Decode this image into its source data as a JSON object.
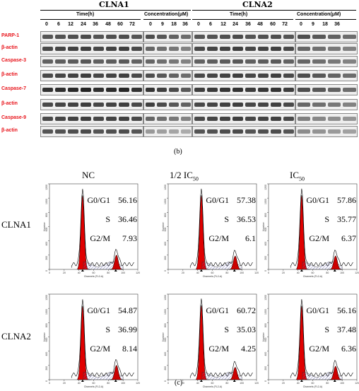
{
  "blot": {
    "groups": [
      {
        "name": "CLNA1",
        "time_header": "Time(h)",
        "conc_header": "Concentration(μM)",
        "time_lanes": [
          "0",
          "6",
          "12",
          "24",
          "36",
          "48",
          "60",
          "72"
        ],
        "conc_lanes": [
          "0",
          "9",
          "18",
          "36"
        ]
      },
      {
        "name": "CLNA2",
        "time_header": "Time(h)",
        "conc_header": "Concentration(μM)",
        "time_lanes": [
          "0",
          "6",
          "12",
          "24",
          "36",
          "48",
          "60",
          "72"
        ],
        "conc_lanes": [
          "0",
          "9",
          "18",
          "36"
        ]
      }
    ],
    "rows": [
      "PARP-1",
      "β-actin",
      "Caspase-3",
      "β-actin",
      "Caspase-7",
      "β-actin",
      "Caspase-9",
      "β-actin"
    ],
    "label_color": "#e8141b",
    "caption": "(b)"
  },
  "flow": {
    "columns": [
      "NC",
      "1/2 IC50",
      "IC50"
    ],
    "rows": [
      "CLNA1",
      "CLNA2"
    ],
    "x_axis_label": "Channels (FL2-A)",
    "y_axis_label": "Number",
    "x_ticks": [
      "0",
      "20",
      "40",
      "60",
      "80",
      "100",
      "120"
    ],
    "y_ticks": [
      "0",
      "200",
      "400",
      "600",
      "800",
      "1000",
      "1200"
    ],
    "stat_labels": [
      "G0/G1",
      "S",
      "G2/M"
    ],
    "panels": [
      {
        "g0g1": "56.16",
        "s": "36.46",
        "g2m": "7.93"
      },
      {
        "g0g1": "57.38",
        "s": "36.53",
        "g2m": "6.1"
      },
      {
        "g0g1": "57.86",
        "s": "35.77",
        "g2m": "6.37"
      },
      {
        "g0g1": "54.87",
        "s": "36.99",
        "g2m": "8.14"
      },
      {
        "g0g1": "60.72",
        "s": "35.03",
        "g2m": "4.25"
      },
      {
        "g0g1": "56.16",
        "s": "37.48",
        "g2m": "6.36"
      }
    ],
    "caption": "(c)",
    "colors": {
      "g0g1": "#e00000",
      "s_hatch": "#5a5ab0",
      "g2m": "#cc0000"
    }
  }
}
